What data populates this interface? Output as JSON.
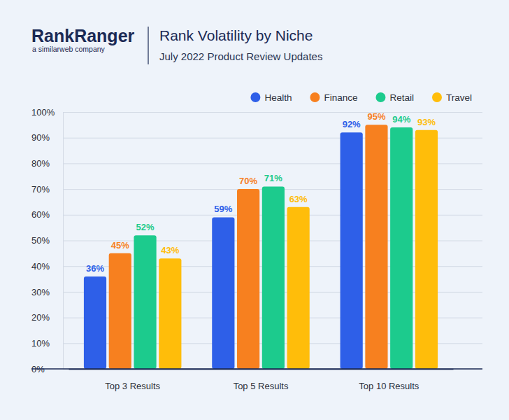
{
  "chart_data": {
    "type": "bar",
    "title": "Rank Volatility by Niche",
    "subtitle": "July 2022 Product Review Updates",
    "annotations": [
      "RankRanger",
      "a similarweb company"
    ],
    "categories": [
      "Top 3 Results",
      "Top 5 Results",
      "Top 10 Results"
    ],
    "series": [
      {
        "name": "Health",
        "color": "#2e5fe8",
        "values": [
          36,
          59,
          92
        ],
        "value_labels": [
          "36%",
          "59%",
          "92%"
        ]
      },
      {
        "name": "Finance",
        "color": "#f7801f",
        "values": [
          45,
          70,
          95
        ],
        "value_labels": [
          "45%",
          "70%",
          "95%"
        ]
      },
      {
        "name": "Retail",
        "color": "#1ccb8d",
        "values": [
          52,
          71,
          94
        ],
        "value_labels": [
          "52%",
          "71%",
          "94%"
        ]
      },
      {
        "name": "Travel",
        "color": "#ffbd0a",
        "values": [
          43,
          63,
          93
        ],
        "value_labels": [
          "43%",
          "63%",
          "93%"
        ]
      }
    ],
    "ylim": [
      0,
      100
    ],
    "yticks": [
      {
        "value": 0,
        "label": "0%"
      },
      {
        "value": 10,
        "label": "10%"
      },
      {
        "value": 20,
        "label": "20%"
      },
      {
        "value": 30,
        "label": "30%"
      },
      {
        "value": 40,
        "label": "40%"
      },
      {
        "value": 50,
        "label": "50%"
      },
      {
        "value": 60,
        "label": "60%"
      },
      {
        "value": 70,
        "label": "70%"
      },
      {
        "value": 80,
        "label": "80%"
      },
      {
        "value": 90,
        "label": "90%"
      },
      {
        "value": 100,
        "label": "100%"
      }
    ],
    "grid": true,
    "legend": "top-right",
    "data_labels": true
  }
}
